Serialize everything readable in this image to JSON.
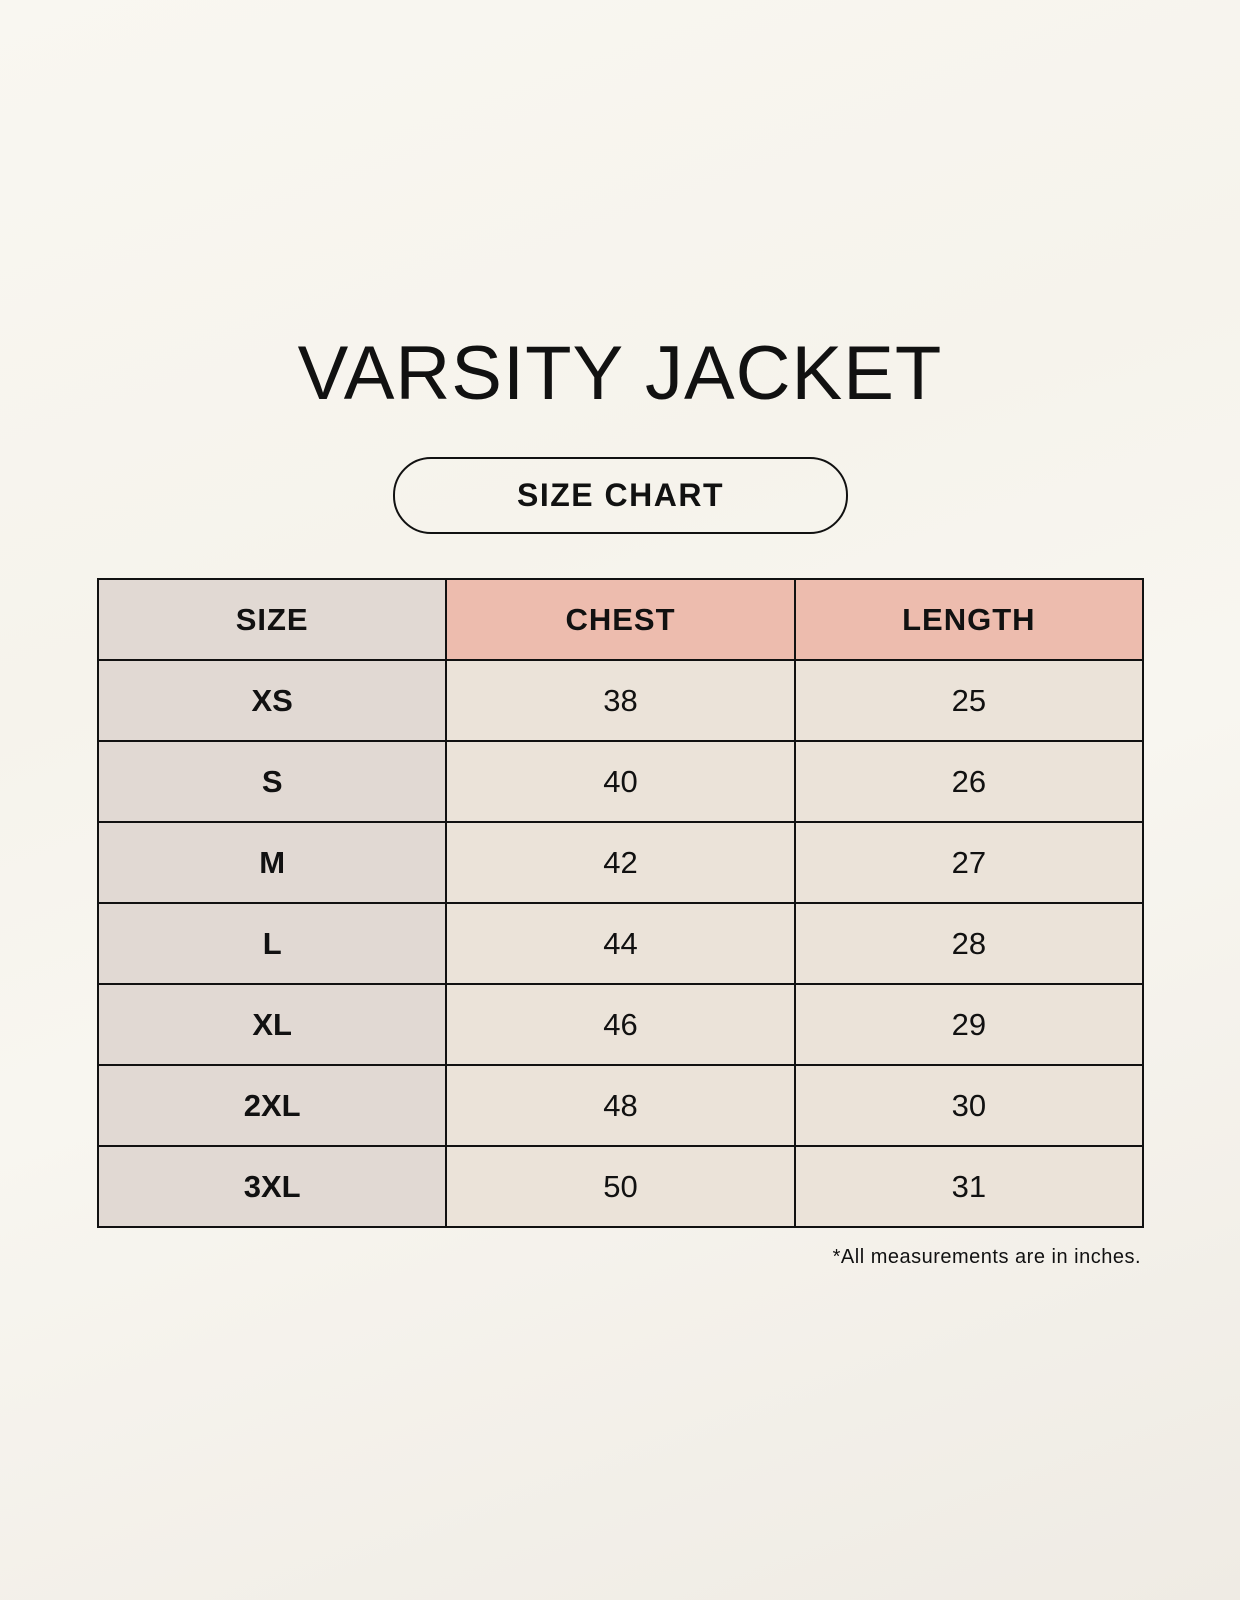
{
  "title": "VARSITY JACKET",
  "subtitle": "SIZE CHART",
  "colors": {
    "size_column": "#e1d9d3",
    "header_accent": "#edbcae",
    "cell": "#ebe3d9"
  },
  "table": {
    "headers": [
      "SIZE",
      "CHEST",
      "LENGTH"
    ],
    "rows": [
      [
        "XS",
        "38",
        "25"
      ],
      [
        "S",
        "40",
        "26"
      ],
      [
        "M",
        "42",
        "27"
      ],
      [
        "L",
        "44",
        "28"
      ],
      [
        "XL",
        "46",
        "29"
      ],
      [
        "2XL",
        "48",
        "30"
      ],
      [
        "3XL",
        "50",
        "31"
      ]
    ]
  },
  "footnote": "*All measurements are in inches."
}
